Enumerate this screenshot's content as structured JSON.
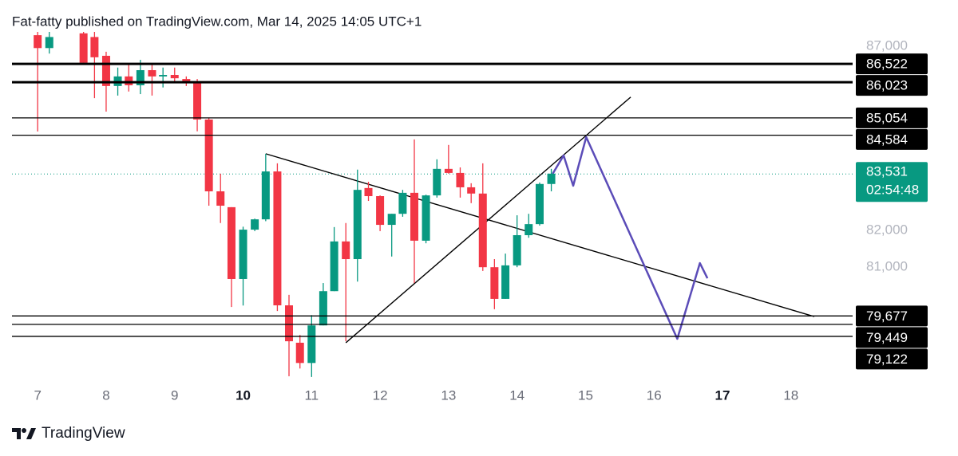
{
  "chart_data": {
    "type": "candlestick",
    "title": "Fat-fatty published on TradingView.com, Mar 14, 2025 14:05 UTC+1",
    "up_color": "#089981",
    "down_color": "#f23645",
    "x": [
      7,
      7.17,
      7.67,
      7.83,
      8,
      8.17,
      8.33,
      8.5,
      8.67,
      8.83,
      9,
      9.17,
      9.33,
      9.5,
      9.67,
      9.83,
      10,
      10.17,
      10.33,
      10.5,
      10.67,
      10.83,
      11,
      11.17,
      11.33,
      11.5,
      11.67,
      11.83,
      12,
      12.17,
      12.33,
      12.5,
      12.67,
      12.83,
      13,
      13.17,
      13.33,
      13.5,
      13.67,
      13.83,
      14,
      14.17,
      14.33,
      14.5
    ],
    "open": [
      87300,
      86950,
      87350,
      87250,
      86740,
      85920,
      86180,
      85940,
      86350,
      86180,
      86220,
      86110,
      86030,
      85010,
      83060,
      82630,
      80680,
      82020,
      82300,
      83600,
      79965,
      78950,
      78400,
      79420,
      80350,
      81700,
      81220,
      83150,
      82930,
      82150,
      82450,
      83020,
      81720,
      82950,
      83670,
      83560,
      83170,
      83000,
      81000,
      80140,
      81050,
      81870,
      82170,
      83260
    ],
    "high": [
      87400,
      87400,
      87400,
      87400,
      86850,
      86420,
      86520,
      86630,
      86520,
      86420,
      86420,
      86180,
      86110,
      85050,
      83540,
      82630,
      82100,
      82320,
      84080,
      83820,
      80250,
      79160,
      79700,
      80570,
      82090,
      82200,
      83650,
      83320,
      82950,
      82450,
      83100,
      84470,
      82970,
      83930,
      84320,
      83710,
      83280,
      83820,
      81220,
      81370,
      82410,
      82450,
      83300,
      83670
    ],
    "low": [
      84685,
      86800,
      86500,
      85590,
      85225,
      85660,
      85770,
      85700,
      85660,
      85880,
      86000,
      85920,
      84690,
      82670,
      82200,
      79920,
      79960,
      81980,
      82250,
      79810,
      78040,
      78250,
      78020,
      79420,
      80350,
      78990,
      80610,
      82800,
      81980,
      81290,
      82370,
      80570,
      81650,
      82890,
      83540,
      82890,
      82740,
      80900,
      79860,
      80140,
      81000,
      81800,
      82130,
      83060
    ],
    "close": [
      86950,
      87250,
      86550,
      86700,
      85920,
      86180,
      85940,
      86350,
      86180,
      86220,
      86130,
      86000,
      85010,
      83060,
      82670,
      80680,
      82020,
      82300,
      83600,
      79965,
      78990,
      78400,
      79420,
      80350,
      81700,
      81220,
      83100,
      82930,
      82150,
      82450,
      83020,
      81720,
      82950,
      83670,
      83560,
      83170,
      83000,
      81000,
      80140,
      81050,
      81870,
      82170,
      83260,
      83540
    ],
    "xlim": [
      6.45,
      18.83
    ],
    "xticks": [
      7,
      8,
      9,
      10,
      11,
      12,
      13,
      14,
      15,
      16,
      17,
      18
    ],
    "bold_xticks": [
      10,
      17
    ],
    "ylim": [
      78000,
      87400
    ],
    "yticks": [
      {
        "value": 81000,
        "label": "81,000"
      },
      {
        "value": 82000,
        "label": "82,000"
      },
      {
        "value": 87000,
        "label": "87,000"
      }
    ],
    "levels": [
      {
        "value": 86522,
        "label": "86,522",
        "thick": true
      },
      {
        "value": 86023,
        "label": "86,023",
        "thick": true
      },
      {
        "value": 85054,
        "label": "85,054",
        "thick": false
      },
      {
        "value": 84584,
        "label": "84,584",
        "thick": false
      },
      {
        "value": 79677,
        "label": "79,677",
        "thick": false
      },
      {
        "value": 79449,
        "label": "79,449",
        "thick": false
      },
      {
        "value": 79122,
        "label": "79,122",
        "thick": false
      }
    ],
    "current_price": {
      "value": 83531,
      "label": "83,531",
      "countdown": "02:54:48",
      "color": "#089981"
    },
    "drawings": [
      {
        "color": "#000000",
        "x": [
          10.33,
          18.34
        ],
        "y": [
          84080,
          79660
        ]
      },
      {
        "color": "#000000",
        "x": [
          11.5,
          15.66
        ],
        "y": [
          78950,
          85620
        ]
      },
      {
        "color": "#5b4cb8",
        "x": [
          14.52,
          14.68,
          14.82,
          15.01,
          16.34,
          16.67,
          16.78
        ],
        "y": [
          83537,
          84035,
          83212,
          84533,
          79056,
          81112,
          80701
        ]
      }
    ]
  },
  "footer": {
    "brand": "TradingView"
  }
}
